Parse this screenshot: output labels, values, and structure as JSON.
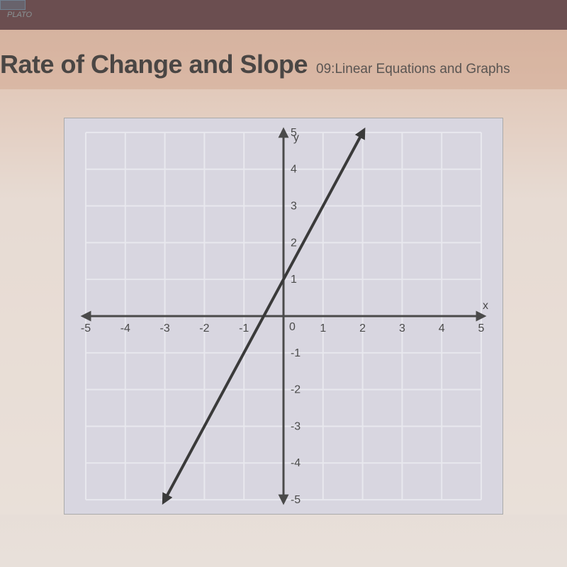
{
  "browser": {
    "tab_hint": "PLATO"
  },
  "header": {
    "title": "Rate of Change and Slope",
    "subtitle": "09:Linear Equations and Graphs"
  },
  "graph": {
    "type": "line",
    "xlim": [
      -5,
      5
    ],
    "ylim": [
      -5,
      5
    ],
    "xtick_step": 1,
    "ytick_step": 1,
    "x_ticks": [
      -5,
      -4,
      -3,
      -2,
      -1,
      0,
      1,
      2,
      3,
      4,
      5
    ],
    "y_ticks": [
      -5,
      -4,
      -3,
      -2,
      -1,
      0,
      1,
      2,
      3,
      4,
      5
    ],
    "xlabel": "x",
    "ylabel": "y",
    "background_color": "#d8d6e0",
    "grid_color": "#e8e8ee",
    "grid_line_width": 2,
    "axis_color": "#4a4a4a",
    "axis_line_width": 3,
    "tick_label_color": "#4a4a4a",
    "tick_label_fontsize": 16,
    "axis_label_color": "#4a4a4a",
    "axis_label_fontsize": 16,
    "line": {
      "slope": 2,
      "intercept": 1,
      "points": [
        [
          -3,
          -5
        ],
        [
          2,
          5
        ]
      ],
      "color": "#3a3a3a",
      "width": 4,
      "arrowheads": true
    }
  }
}
